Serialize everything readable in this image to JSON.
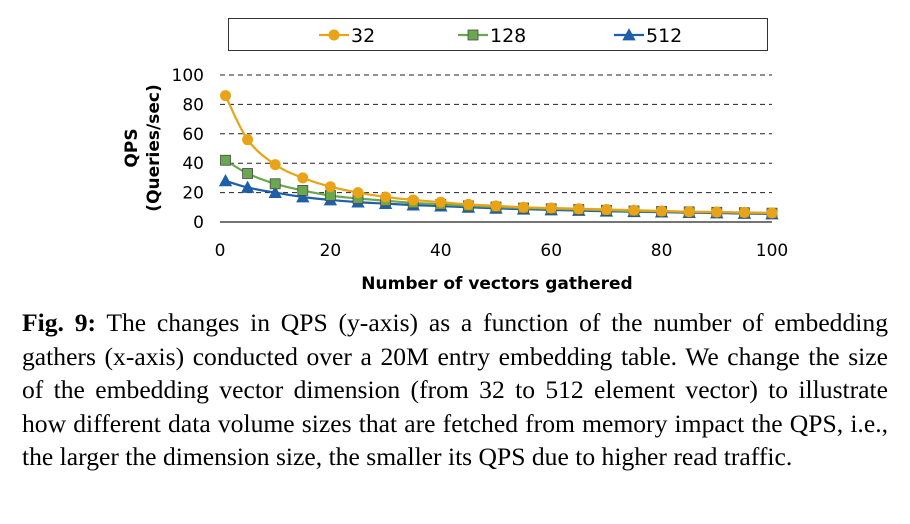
{
  "chart_data": {
    "type": "line",
    "xlabel": "Number of vectors gathered",
    "ylabel_line1": "QPS",
    "ylabel_line2": "(Queries/sec)",
    "xlim": [
      0,
      100
    ],
    "ylim": [
      0,
      100
    ],
    "x_ticks": [
      0,
      20,
      40,
      60,
      80,
      100
    ],
    "y_ticks": [
      0,
      20,
      40,
      60,
      80,
      100
    ],
    "grid": "horizontal dashed",
    "legend_position": "top",
    "x": [
      1,
      5,
      10,
      15,
      20,
      25,
      30,
      35,
      40,
      45,
      50,
      55,
      60,
      65,
      70,
      75,
      80,
      85,
      90,
      95,
      100
    ],
    "series": [
      {
        "name": "32",
        "color": "#e8a317",
        "marker": "circle",
        "values": [
          86,
          56,
          39,
          30,
          24,
          20,
          17,
          15,
          13.5,
          12,
          11,
          10,
          9.5,
          9,
          8.5,
          8,
          7.5,
          7,
          6.8,
          6.5,
          6.2
        ]
      },
      {
        "name": "128",
        "color": "#6aa84f",
        "marker": "square",
        "values": [
          42,
          33,
          26,
          21.5,
          18,
          16,
          14.5,
          13,
          12,
          11,
          10.2,
          9.5,
          9,
          8.5,
          8,
          7.5,
          7.2,
          6.9,
          6.6,
          6.3,
          6
        ]
      },
      {
        "name": "512",
        "color": "#1f5fa8",
        "marker": "triangle",
        "values": [
          28,
          23.5,
          20,
          17,
          15,
          13.5,
          12.5,
          11.5,
          10.8,
          10,
          9.3,
          8.7,
          8.2,
          7.8,
          7.3,
          7,
          6.7,
          6.4,
          6.1,
          5.8,
          5.5
        ]
      }
    ]
  },
  "caption": {
    "label": "Fig. 9:",
    "text": "The changes in QPS (y-axis) as a function of the number of embedding gathers (x-axis) conducted over a 20M entry embedding table. We change the size of the embedding vector dimension (from 32 to 512 element vector) to illustrate how different data volume sizes that are fetched from memory impact the QPS, i.e., the larger the dimension size, the smaller its QPS due to higher read traffic."
  }
}
